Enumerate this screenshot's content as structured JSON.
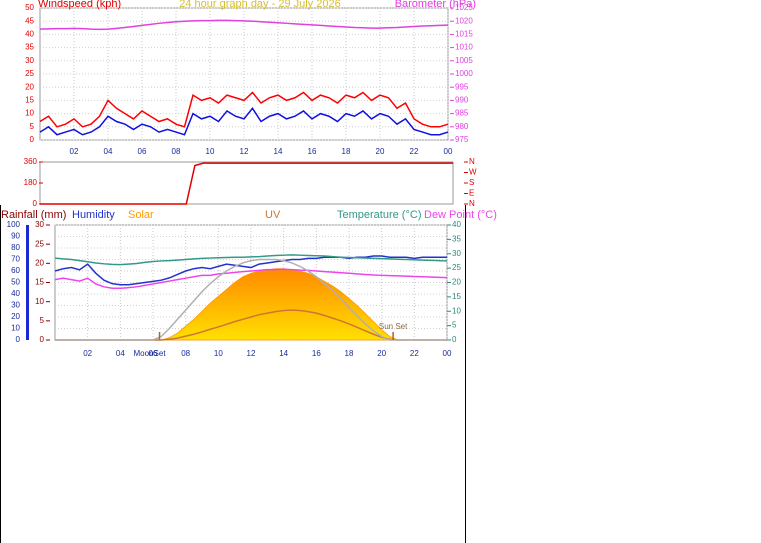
{
  "chart_data": [
    {
      "type": "line",
      "title": "24 hour graph day - 29 July 2026",
      "ylabel": "Windspeed (kph)",
      "y2label": "Barometer (hPa)",
      "ycolor": "#e00000",
      "y2color": "#e040e0",
      "grid": true,
      "xlim": [
        0,
        24
      ],
      "xticks": [
        {
          "value": 2,
          "label": "02"
        },
        {
          "value": 4,
          "label": "04"
        },
        {
          "value": 6,
          "label": "06"
        },
        {
          "value": 8,
          "label": "08"
        },
        10,
        12,
        14,
        16,
        18,
        20,
        22,
        {
          "value": 24,
          "label": "00"
        }
      ],
      "ylim": [
        0,
        50
      ],
      "yticks": [
        0,
        5,
        10,
        15,
        20,
        25,
        30,
        35,
        40,
        45,
        50
      ],
      "y2lim": [
        975,
        1025
      ],
      "y2ticks": [
        975,
        980,
        985,
        990,
        995,
        1000,
        1005,
        1010,
        1015,
        1020,
        1025
      ],
      "x": [
        0,
        0.5,
        1,
        1.5,
        2,
        2.5,
        3,
        3.5,
        4,
        4.5,
        5,
        5.5,
        6,
        6.5,
        7,
        7.5,
        8,
        8.5,
        9,
        9.5,
        10,
        10.5,
        11,
        11.5,
        12,
        12.5,
        13,
        13.5,
        14,
        14.5,
        15,
        15.5,
        16,
        16.5,
        17,
        17.5,
        18,
        18.5,
        19,
        19.5,
        20,
        20.5,
        21,
        21.5,
        22,
        22.5,
        23,
        23.5,
        24
      ],
      "series": [
        {
          "color": "#ff0000",
          "values": [
            7,
            9,
            5,
            6,
            8,
            5,
            6,
            9,
            15,
            12,
            10,
            8,
            11,
            9,
            7,
            8,
            6,
            5,
            17,
            15,
            16,
            14,
            17,
            16,
            15,
            18,
            14,
            16,
            17,
            15,
            16,
            18,
            15,
            17,
            16,
            14,
            17,
            16,
            18,
            15,
            17,
            16,
            12,
            14,
            8,
            6,
            5,
            5,
            6
          ]
        },
        {
          "color": "#1010e0",
          "values": [
            3,
            5,
            2,
            3,
            4,
            2,
            3,
            5,
            9,
            7,
            6,
            4,
            6,
            5,
            3,
            4,
            3,
            2,
            10,
            8,
            9,
            7,
            11,
            9,
            8,
            12,
            7,
            9,
            10,
            8,
            9,
            11,
            8,
            10,
            9,
            7,
            10,
            9,
            11,
            8,
            10,
            9,
            6,
            8,
            4,
            3,
            2,
            2,
            3
          ]
        },
        {
          "color": "#e040e0",
          "axis": "y2",
          "values": [
            1017.0,
            1017.1,
            1017.2,
            1017.2,
            1017.3,
            1017.2,
            1017.0,
            1016.9,
            1017.0,
            1017.3,
            1017.6,
            1018.0,
            1018.4,
            1018.8,
            1019.2,
            1019.5,
            1019.8,
            1020.0,
            1020.1,
            1020.2,
            1020.2,
            1020.3,
            1020.3,
            1020.2,
            1020.1,
            1020.0,
            1019.8,
            1019.6,
            1019.4,
            1019.2,
            1019.0,
            1018.8,
            1018.6,
            1018.4,
            1018.2,
            1018.0,
            1017.8,
            1017.6,
            1017.5,
            1017.4,
            1017.4,
            1017.5,
            1017.6,
            1017.8,
            1018.0,
            1018.2,
            1018.3,
            1018.4,
            1018.5
          ]
        }
      ]
    },
    {
      "type": "line",
      "ycolor": "#e00000",
      "y2color": "#e00000",
      "grid": false,
      "xlim": [
        0,
        24
      ],
      "ylim": [
        0,
        360
      ],
      "yticks": [
        0,
        180,
        360
      ],
      "y2lim": [
        0,
        360
      ],
      "y2ticks": [
        {
          "value": 360,
          "label": "N"
        },
        {
          "value": 270,
          "label": "W"
        },
        {
          "value": 180,
          "label": "S"
        },
        {
          "value": 90,
          "label": "E"
        },
        {
          "value": 0,
          "label": "N"
        }
      ],
      "x": [
        0,
        0.5,
        1,
        1.5,
        2,
        2.5,
        3,
        3.5,
        4,
        4.5,
        5,
        5.5,
        6,
        6.5,
        7,
        7.5,
        8,
        8.5,
        9,
        9.5,
        10,
        10.5,
        11,
        11.5,
        12,
        12.5,
        13,
        13.5,
        14,
        14.5,
        15,
        15.5,
        16,
        16.5,
        17,
        17.5,
        18,
        18.5,
        19,
        19.5,
        20,
        20.5,
        21,
        21.5,
        22,
        22.5,
        23,
        23.5,
        24
      ],
      "series": [
        {
          "color": "#e00000",
          "values": [
            0,
            0,
            0,
            0,
            0,
            0,
            0,
            0,
            0,
            0,
            0,
            0,
            0,
            0,
            0,
            0,
            0,
            0,
            330,
            350,
            350,
            350,
            350,
            350,
            350,
            350,
            350,
            350,
            350,
            350,
            350,
            350,
            350,
            350,
            350,
            350,
            350,
            350,
            350,
            350,
            350,
            350,
            350,
            350,
            350,
            350,
            350,
            350,
            350
          ]
        }
      ]
    },
    {
      "type": "line",
      "ylabel": "Humidity",
      "y2label": "Rainfall (mm)",
      "y3label": "Temperature (°C)",
      "ycolor": "#1a2a9a",
      "y2color": "#8b0000",
      "y3color": "#2a8a7a",
      "grid": true,
      "xlim": [
        0,
        24
      ],
      "xticks": [
        {
          "value": 2,
          "label": "02"
        },
        {
          "value": 4,
          "label": "04"
        },
        {
          "value": 6,
          "label": "06"
        },
        {
          "value": 8,
          "label": "08"
        },
        10,
        12,
        14,
        16,
        18,
        20,
        22,
        {
          "value": 24,
          "label": "00"
        }
      ],
      "ylim": [
        0,
        100
      ],
      "yticks": [
        0,
        10,
        20,
        30,
        40,
        50,
        60,
        70,
        80,
        90,
        100
      ],
      "y2lim": [
        0,
        30
      ],
      "y2ticks": [
        0,
        5,
        10,
        15,
        20,
        25,
        30
      ],
      "y3lim": [
        0,
        40
      ],
      "y3ticks": [
        0,
        5,
        10,
        15,
        20,
        25,
        30,
        35,
        40
      ],
      "annotations": [
        {
          "text": "MoonSet",
          "x": 6.4
        },
        {
          "text": "Sun Set",
          "x": 20.7
        }
      ],
      "x": [
        0,
        0.5,
        1,
        1.5,
        2,
        2.5,
        3,
        3.5,
        4,
        4.5,
        5,
        5.5,
        6,
        6.5,
        7,
        7.5,
        8,
        8.5,
        9,
        9.5,
        10,
        10.5,
        11,
        11.5,
        12,
        12.5,
        13,
        13.5,
        14,
        14.5,
        15,
        15.5,
        16,
        16.5,
        17,
        17.5,
        18,
        18.5,
        19,
        19.5,
        20,
        20.5,
        21,
        21.5,
        22,
        22.5,
        23,
        23.5,
        24
      ],
      "series": [
        {
          "name": "Humidity",
          "color": "#2233cc",
          "values": [
            60,
            62,
            63,
            61,
            66,
            58,
            52,
            49,
            48,
            48,
            49,
            50,
            51,
            52,
            54,
            57,
            60,
            62,
            63,
            62,
            64,
            66,
            65,
            64,
            63,
            66,
            67,
            68,
            69,
            70,
            70,
            71,
            71,
            72,
            72,
            72,
            71,
            72,
            72,
            73,
            73,
            72,
            72,
            72,
            71,
            72,
            72,
            72,
            72
          ]
        },
        {
          "name": "Solar",
          "color": "#ff9900",
          "area": true,
          "values": [
            0,
            0,
            0,
            0,
            0,
            0,
            0,
            0,
            0,
            0,
            0,
            0,
            0,
            0,
            2,
            6,
            12,
            18,
            25,
            32,
            38,
            44,
            50,
            55,
            58,
            60,
            61,
            62,
            62,
            61,
            60,
            58,
            55,
            51,
            47,
            42,
            36,
            30,
            23,
            16,
            9,
            3,
            0,
            0,
            0,
            0,
            0,
            0,
            0
          ]
        },
        {
          "name": "UV",
          "color": "#cc7733",
          "axis": "y2",
          "values": [
            0,
            0,
            0,
            0,
            0,
            0,
            0,
            0,
            0,
            0,
            0,
            0,
            0,
            0,
            0.2,
            0.5,
            1,
            1.5,
            2.1,
            2.8,
            3.4,
            4.1,
            4.8,
            5.4,
            6,
            6.6,
            7,
            7.4,
            7.7,
            7.8,
            7.7,
            7.4,
            7,
            6.4,
            5.7,
            5,
            4.2,
            3.3,
            2.4,
            1.5,
            0.7,
            0.2,
            0,
            0,
            0,
            0,
            0,
            0,
            0
          ]
        },
        {
          "name": "Temperature (°C)",
          "color": "#339988",
          "axis": "y3",
          "values": [
            28.5,
            28.2,
            28.0,
            27.6,
            27.2,
            26.8,
            26.5,
            26.3,
            26.2,
            26.4,
            26.6,
            27.0,
            27.3,
            27.5,
            27.6,
            27.8,
            28.0,
            28.2,
            28.4,
            28.5,
            28.6,
            28.7,
            28.8,
            28.8,
            28.9,
            29.0,
            29.2,
            29.4,
            29.5,
            29.6,
            29.5,
            29.4,
            29.3,
            29.2,
            29.0,
            28.8,
            28.7,
            28.6,
            28.5,
            28.4,
            28.3,
            28.2,
            28.1,
            28.0,
            27.9,
            27.8,
            27.7,
            27.6,
            27.5
          ]
        },
        {
          "name": "Dew Point (°C)",
          "color": "#ee44ee",
          "axis": "y3",
          "values": [
            21,
            21.5,
            21,
            20.5,
            21.5,
            19.5,
            18.5,
            18,
            18,
            18.2,
            18.5,
            19,
            19.5,
            20,
            20.5,
            21,
            21.5,
            22,
            22.5,
            22.5,
            23,
            23.2,
            23.5,
            23.8,
            24,
            24.2,
            24.5,
            24.5,
            24.6,
            24.5,
            24.3,
            24.2,
            24,
            23.8,
            23.6,
            23.4,
            23.2,
            23,
            22.8,
            22.6,
            22.5,
            22.4,
            22.3,
            22.2,
            22.1,
            22,
            21.9,
            21.8,
            21.7
          ]
        },
        {
          "color": "#b0b0b0",
          "values": [
            0,
            0,
            0,
            0,
            0,
            0,
            0,
            0,
            0,
            0,
            0,
            0,
            0,
            3,
            10,
            18,
            26,
            34,
            42,
            49,
            55,
            60,
            64,
            67,
            69,
            70,
            70,
            70,
            69,
            67,
            64,
            60,
            55,
            49,
            43,
            36,
            28,
            21,
            14,
            8,
            3,
            0,
            0,
            0,
            0,
            0,
            0,
            0,
            0
          ]
        }
      ]
    }
  ]
}
